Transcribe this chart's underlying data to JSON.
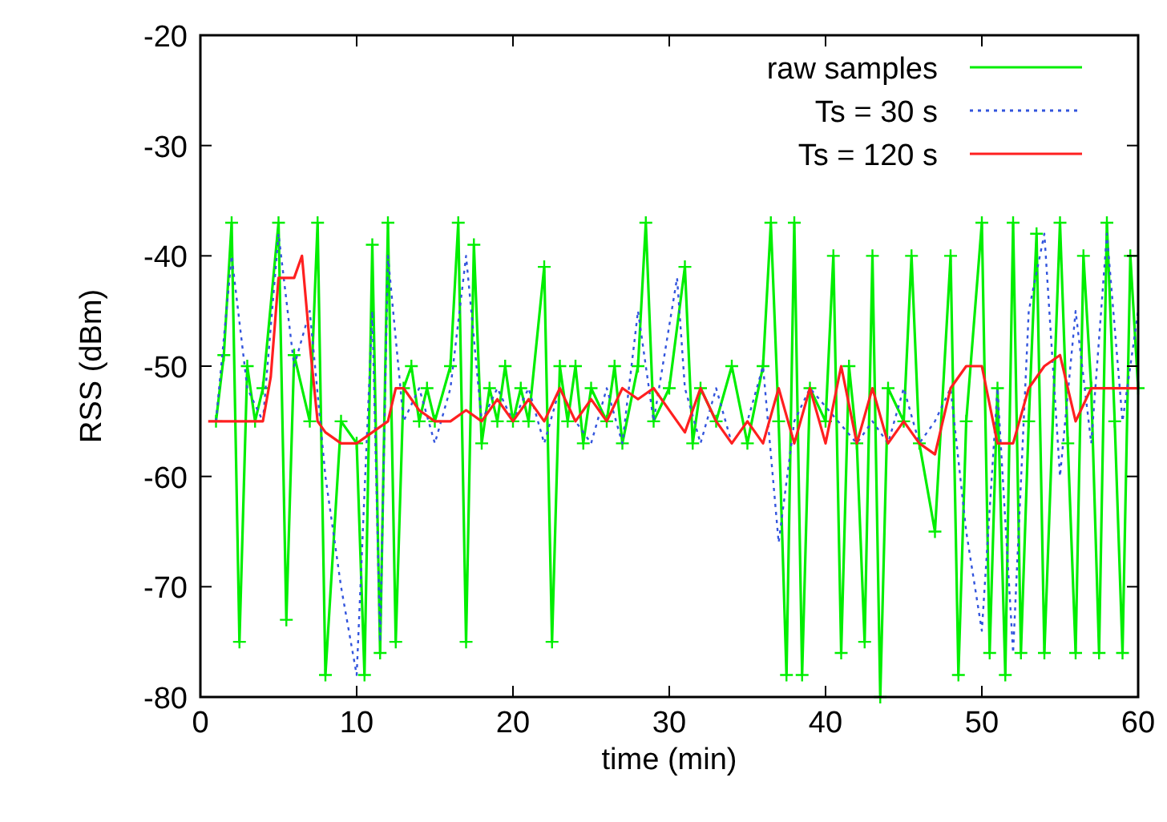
{
  "chart_data": {
    "type": "line",
    "xlabel": "time (min)",
    "ylabel": "RSS (dBm)",
    "xlim": [
      0,
      60
    ],
    "xticks": [
      0,
      10,
      20,
      30,
      40,
      50,
      60
    ],
    "ylim": [
      -80,
      -20
    ],
    "yticks": [
      -80,
      -70,
      -60,
      -50,
      -40,
      -30,
      -20
    ],
    "grid": false,
    "legend": "top right",
    "series": [
      {
        "name": "raw samples",
        "color": "#00ee00",
        "marker": "cross",
        "line_style": "solid",
        "x": [
          1,
          1.5,
          2,
          2.5,
          3,
          3.5,
          4,
          5,
          5.5,
          6,
          7,
          7.5,
          8,
          9,
          10,
          10.5,
          11,
          11.5,
          12,
          12.5,
          13,
          13.5,
          14,
          14.5,
          15,
          16,
          16.5,
          17,
          17.5,
          18,
          18.5,
          19,
          19.5,
          20,
          20.5,
          21,
          22,
          22.5,
          23,
          23.5,
          24,
          24.5,
          25,
          26,
          26.5,
          27,
          28,
          28.5,
          29,
          30,
          31,
          31.5,
          32,
          33,
          34,
          35,
          36,
          36.5,
          37,
          37.5,
          38,
          38.5,
          39,
          40,
          40.5,
          41,
          41.5,
          42,
          42.5,
          43,
          43.5,
          44,
          45,
          45.5,
          46,
          47,
          48,
          48.5,
          49,
          50,
          50.5,
          51,
          51.5,
          52,
          52.5,
          53,
          53.5,
          54,
          55,
          55.5,
          56,
          56.5,
          57,
          57.5,
          58,
          58.5,
          59,
          59.5,
          60
        ],
        "values": [
          -55,
          -49,
          -37,
          -75,
          -50,
          -55,
          -52,
          -37,
          -73,
          -49,
          -55,
          -37,
          -78,
          -55,
          -57,
          -78,
          -39,
          -76,
          -37,
          -75,
          -52,
          -50,
          -55,
          -52,
          -55,
          -50,
          -37,
          -75,
          -39,
          -57,
          -52,
          -55,
          -50,
          -55,
          -52,
          -55,
          -41,
          -75,
          -50,
          -55,
          -50,
          -57,
          -52,
          -55,
          -50,
          -57,
          -50,
          -37,
          -55,
          -52,
          -41,
          -57,
          -52,
          -55,
          -50,
          -57,
          -50,
          -37,
          -55,
          -78,
          -37,
          -78,
          -52,
          -55,
          -40,
          -76,
          -50,
          -57,
          -75,
          -40,
          -80,
          -52,
          -55,
          -40,
          -57,
          -65,
          -40,
          -78,
          -55,
          -37,
          -76,
          -52,
          -78,
          -37,
          -76,
          -55,
          -38,
          -76,
          -37,
          -57,
          -76,
          -40,
          -52,
          -76,
          -37,
          -55,
          -76,
          -40,
          -52
        ]
      },
      {
        "name": "Ts = 30 s",
        "color": "#3355dd",
        "marker": "none",
        "line_style": "dotted",
        "x": [
          1,
          2,
          3,
          4,
          5,
          6,
          7,
          8,
          9,
          10,
          11,
          11.5,
          12,
          13,
          14,
          15,
          16,
          17,
          18,
          19,
          20,
          21,
          22,
          23,
          24,
          25,
          26,
          27,
          28,
          29,
          30.5,
          31,
          32,
          33,
          34,
          35,
          36,
          37,
          38,
          39,
          40,
          41,
          42,
          43,
          44,
          45,
          46,
          47,
          48,
          49,
          50,
          51,
          52,
          53,
          54,
          55,
          56,
          57,
          58,
          59,
          60
        ],
        "values": [
          -55,
          -40,
          -52,
          -55,
          -38,
          -50,
          -45,
          -60,
          -70,
          -78,
          -45,
          -75,
          -40,
          -55,
          -52,
          -57,
          -52,
          -40,
          -55,
          -52,
          -55,
          -52,
          -57,
          -52,
          -55,
          -57,
          -52,
          -57,
          -45,
          -55,
          -42,
          -52,
          -57,
          -52,
          -57,
          -55,
          -50,
          -66,
          -55,
          -52,
          null,
          null,
          -57,
          -55,
          -57,
          -52,
          -57,
          -55,
          -52,
          -65,
          -74,
          -52,
          -76,
          -45,
          -38,
          -60,
          -45,
          -57,
          -38,
          -55,
          -45
        ]
      },
      {
        "name": "Ts = 120 s",
        "color": "#ff2020",
        "marker": "none",
        "line_style": "solid",
        "x": [
          0.5,
          4,
          4.5,
          5,
          6,
          6.5,
          7,
          7.5,
          8,
          9,
          10,
          11,
          12,
          12.5,
          13,
          14,
          15,
          16,
          17,
          18,
          19,
          20,
          21,
          22,
          23,
          24,
          25,
          26,
          27,
          28,
          29,
          30,
          31,
          32,
          33,
          34,
          35,
          36,
          37,
          38,
          39,
          40,
          41,
          42,
          43,
          44,
          45,
          46,
          47,
          48,
          49,
          50,
          51,
          52,
          53,
          54,
          55,
          56,
          57,
          58,
          60
        ],
        "values": [
          -55,
          -55,
          -51,
          -42,
          -42,
          -40,
          -48,
          -55,
          -56,
          -57,
          -57,
          -56,
          -55,
          -52,
          -52,
          -54,
          -55,
          -55,
          -54,
          -55,
          -53,
          -55,
          -53,
          -55,
          -52,
          -55,
          -53,
          -55,
          -52,
          -53,
          -52,
          -54,
          -56,
          -52,
          -55,
          -57,
          -55,
          -57,
          -52,
          -57,
          -52,
          -57,
          -50,
          -57,
          -52,
          -57,
          -55,
          -57,
          -58,
          -52,
          -50,
          -50,
          -57,
          -57,
          -52,
          -50,
          -49,
          -55,
          -52,
          -52,
          -52
        ]
      }
    ]
  }
}
